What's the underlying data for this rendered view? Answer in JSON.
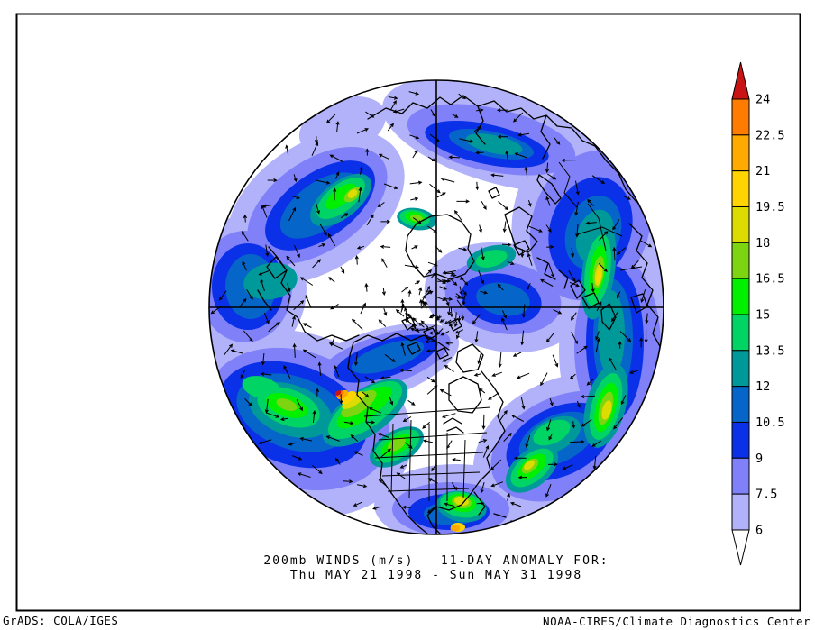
{
  "title": {
    "line1": "200mb WINDS (m/s)   11-DAY ANOMALY FOR:",
    "line2": "Thu MAY 21 1998 - Sun MAY 31 1998"
  },
  "footer": {
    "left": "GrADS: COLA/IGES",
    "right": "NOAA-CIRES/Climate Diagnostics Center",
    "left_color": "#000000",
    "right_color": "#000000"
  },
  "colorbar": {
    "unit": "m/s",
    "tick_labels": [
      "24",
      "22.5",
      "21",
      "19.5",
      "18",
      "16.5",
      "15",
      "13.5",
      "12",
      "10.5",
      "9",
      "7.5",
      "6"
    ],
    "segments": [
      {
        "range": ">24",
        "color": "#c81414",
        "shape": "arrow-up"
      },
      {
        "range": "22.5-24",
        "color": "#ff7c00"
      },
      {
        "range": "21-22.5",
        "color": "#ffaa00"
      },
      {
        "range": "19.5-21",
        "color": "#ffd400"
      },
      {
        "range": "18-19.5",
        "color": "#dcdc00"
      },
      {
        "range": "16.5-18",
        "color": "#7dd410"
      },
      {
        "range": "15-16.5",
        "color": "#00f000"
      },
      {
        "range": "13.5-15",
        "color": "#00d464"
      },
      {
        "range": "12-13.5",
        "color": "#00999a"
      },
      {
        "range": "10.5-12",
        "color": "#0665c8"
      },
      {
        "range": "9-10.5",
        "color": "#0a30e8"
      },
      {
        "range": "7.5-9",
        "color": "#8080f8"
      },
      {
        "range": "6-7.5",
        "color": "#b2b2fa"
      },
      {
        "range": "<6",
        "color": "#ffffff",
        "shape": "arrow-down"
      }
    ]
  }
}
